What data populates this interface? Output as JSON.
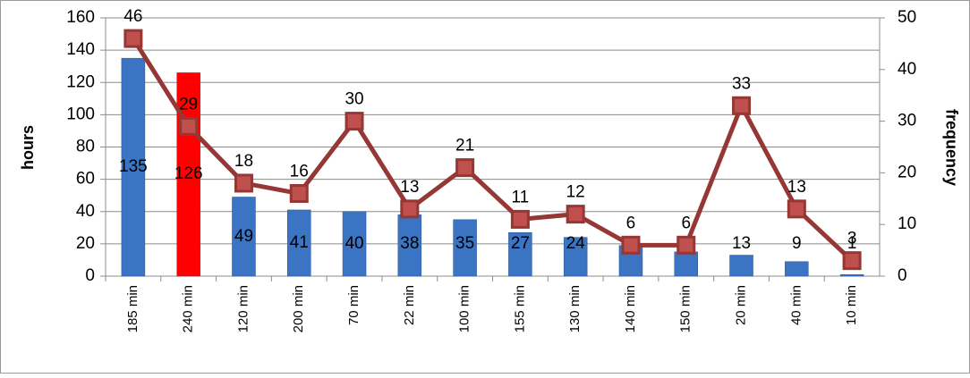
{
  "chart_data": {
    "type": "combo",
    "categories": [
      "185 min",
      "240 min",
      "120 min",
      "200 min",
      "70 min",
      "22 min",
      "100 min",
      "155 min",
      "130 min",
      "140 min",
      "150 min",
      "20 min",
      "40 min",
      "10 min"
    ],
    "series": [
      {
        "name": "hours",
        "type": "bar",
        "color": "#3a74c2",
        "colors": [
          "#3a74c2",
          "#ff0000",
          "#3a74c2",
          "#3a74c2",
          "#3a74c2",
          "#3a74c2",
          "#3a74c2",
          "#3a74c2",
          "#3a74c2",
          "#3a74c2",
          "#3a74c2",
          "#3a74c2",
          "#3a74c2",
          "#3a74c2"
        ],
        "values": [
          135,
          126,
          49,
          41,
          40,
          38,
          35,
          27,
          24,
          19,
          15,
          13,
          9,
          1
        ]
      },
      {
        "name": "frequency",
        "type": "line",
        "axis": "y2",
        "color": "#953735",
        "values": [
          46,
          29,
          18,
          16,
          30,
          13,
          21,
          11,
          12,
          6,
          6,
          33,
          13,
          3
        ]
      }
    ],
    "ylabel": "hours",
    "y2label": "frequency",
    "ylim": [
      0,
      160
    ],
    "yticks": [
      0,
      20,
      40,
      60,
      80,
      100,
      120,
      140,
      160
    ],
    "y2lim": [
      0,
      50
    ],
    "y2ticks": [
      0,
      10,
      20,
      30,
      40,
      50
    ],
    "grid": true
  }
}
